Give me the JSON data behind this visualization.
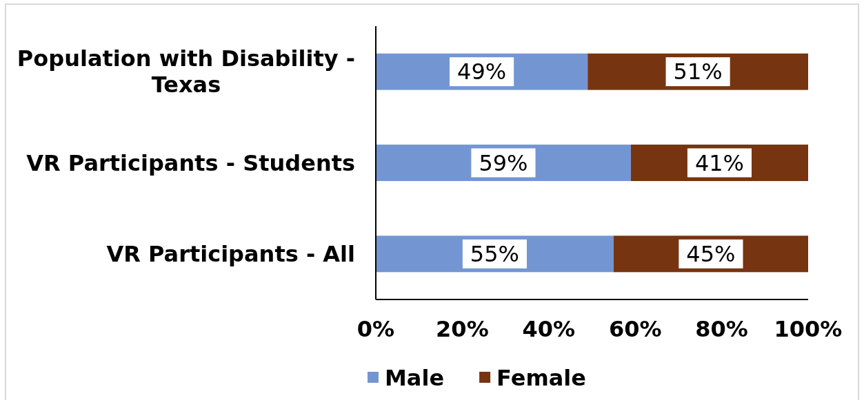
{
  "chart_data": {
    "type": "bar",
    "orientation": "horizontal",
    "stacked": true,
    "categories": [
      "Population with Disability - Texas",
      "VR Participants - Students",
      "VR Participants - All"
    ],
    "series": [
      {
        "name": "Male",
        "color": "#7396d3",
        "values": [
          49,
          59,
          55
        ],
        "value_labels": [
          "49%",
          "59%",
          "55%"
        ]
      },
      {
        "name": "Female",
        "color": "#773410",
        "values": [
          51,
          41,
          45
        ],
        "value_labels": [
          "51%",
          "41%",
          "45%"
        ]
      }
    ],
    "xlim": [
      0,
      100
    ],
    "xticks": [
      {
        "value": 0,
        "label": "0%"
      },
      {
        "value": 20,
        "label": "20%"
      },
      {
        "value": 40,
        "label": "40%"
      },
      {
        "value": 60,
        "label": "60%"
      },
      {
        "value": 80,
        "label": "80%"
      },
      {
        "value": 100,
        "label": "100%"
      }
    ],
    "legend": "bottom"
  }
}
